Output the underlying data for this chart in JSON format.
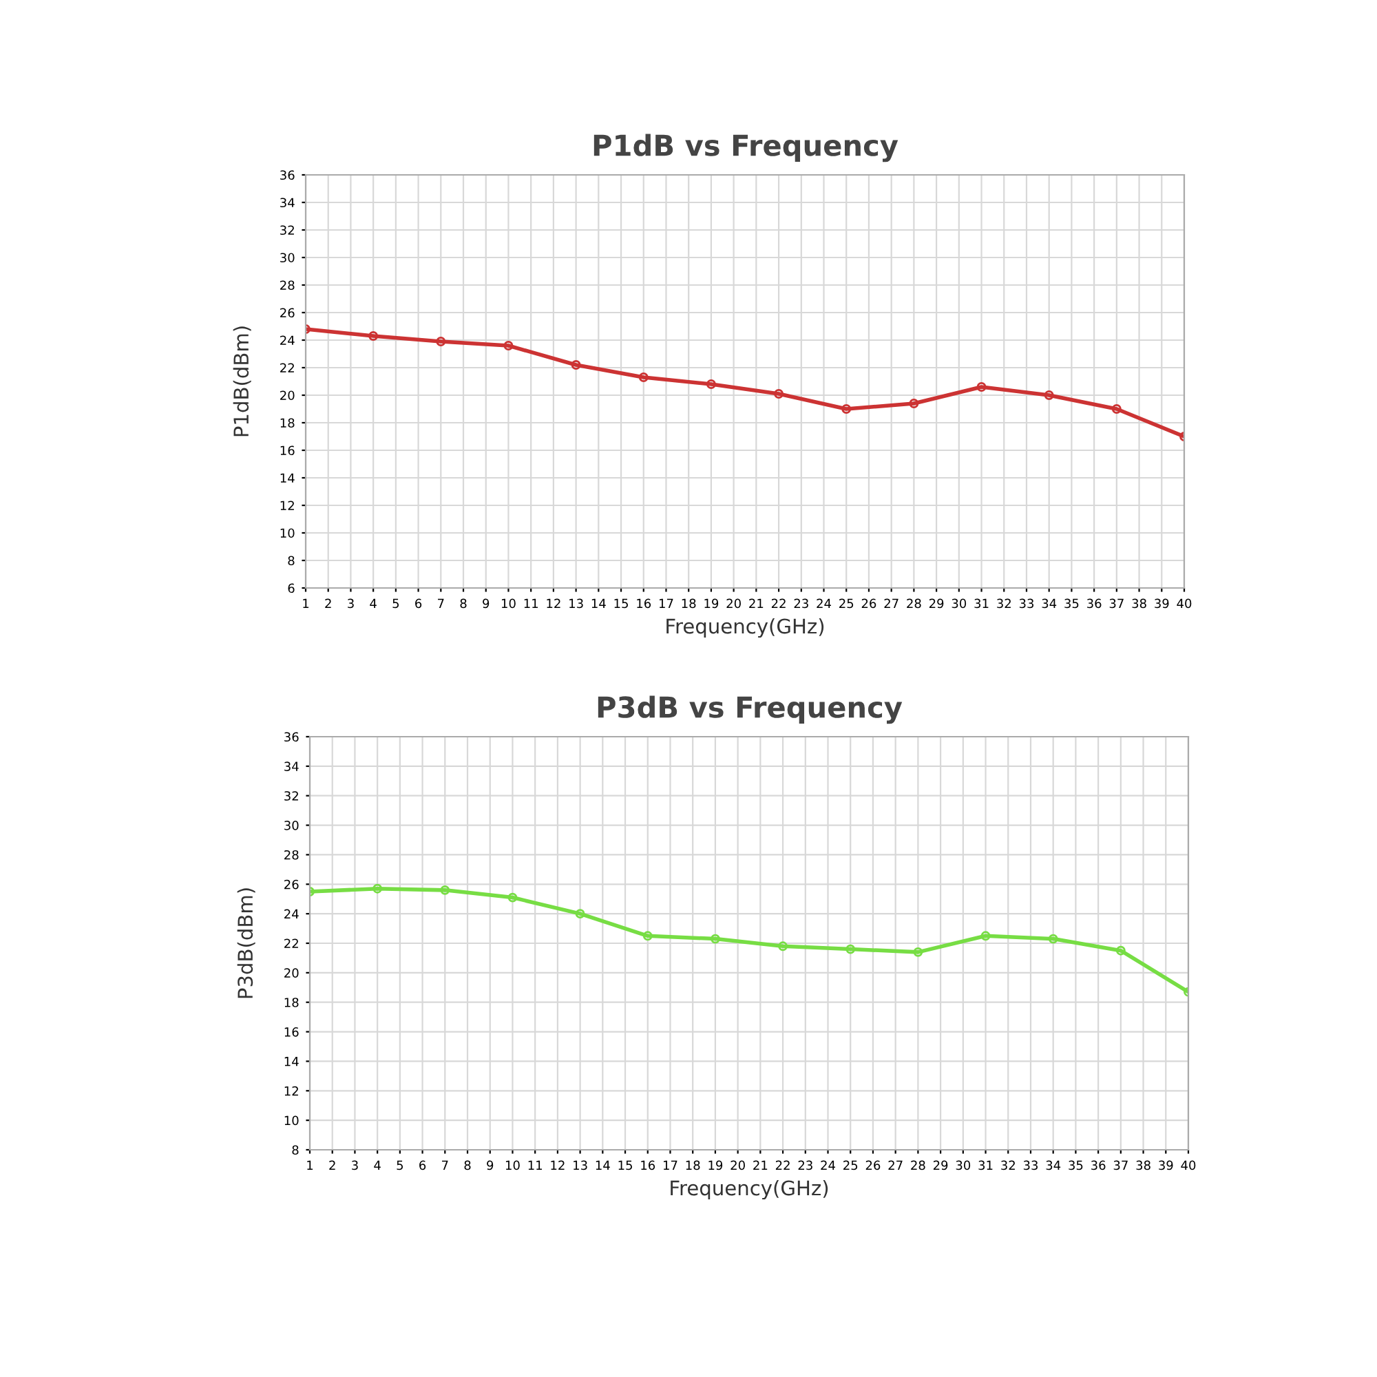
{
  "chart_data": [
    {
      "type": "line",
      "title": "P1dB vs Frequency",
      "xlabel": "Frequency(GHz)",
      "ylabel": "P1dB(dBm)",
      "x": [
        1,
        4,
        7,
        10,
        13,
        16,
        19,
        22,
        25,
        28,
        31,
        34,
        37,
        40
      ],
      "series": [
        {
          "color": "#cc3333",
          "values": [
            24.8,
            24.3,
            23.9,
            23.6,
            22.2,
            21.3,
            20.8,
            20.1,
            19.0,
            19.4,
            20.6,
            20.0,
            19.0,
            17.0
          ]
        }
      ],
      "xlim": [
        1,
        40
      ],
      "xticks": [
        1,
        2,
        3,
        4,
        5,
        6,
        7,
        8,
        9,
        10,
        11,
        12,
        13,
        14,
        15,
        16,
        17,
        18,
        19,
        20,
        21,
        22,
        23,
        24,
        25,
        26,
        27,
        28,
        29,
        30,
        31,
        32,
        33,
        34,
        35,
        36,
        37,
        38,
        39,
        40
      ],
      "ylim": [
        6,
        36
      ],
      "yticks": [
        6,
        8,
        10,
        12,
        14,
        16,
        18,
        20,
        22,
        24,
        26,
        28,
        30,
        32,
        34,
        36
      ],
      "grid": true,
      "marker": "circle",
      "line_style": "solid"
    },
    {
      "type": "line",
      "title": "P3dB vs Frequency",
      "xlabel": "Frequency(GHz)",
      "ylabel": "P3dB(dBm)",
      "x": [
        1,
        4,
        7,
        10,
        13,
        16,
        19,
        22,
        25,
        28,
        31,
        34,
        37,
        40
      ],
      "series": [
        {
          "color": "#77dd44",
          "values": [
            25.5,
            25.7,
            25.6,
            25.1,
            24.0,
            22.5,
            22.3,
            21.8,
            21.6,
            21.4,
            22.5,
            22.3,
            21.5,
            18.7
          ]
        }
      ],
      "xlim": [
        1,
        40
      ],
      "xticks": [
        1,
        2,
        3,
        4,
        5,
        6,
        7,
        8,
        9,
        10,
        11,
        12,
        13,
        14,
        15,
        16,
        17,
        18,
        19,
        20,
        21,
        22,
        23,
        24,
        25,
        26,
        27,
        28,
        29,
        30,
        31,
        32,
        33,
        34,
        35,
        36,
        37,
        38,
        39,
        40
      ],
      "ylim": [
        8,
        36
      ],
      "yticks": [
        8,
        10,
        12,
        14,
        16,
        18,
        20,
        22,
        24,
        26,
        28,
        30,
        32,
        34,
        36
      ],
      "grid": true,
      "marker": "circle",
      "line_style": "solid"
    }
  ]
}
